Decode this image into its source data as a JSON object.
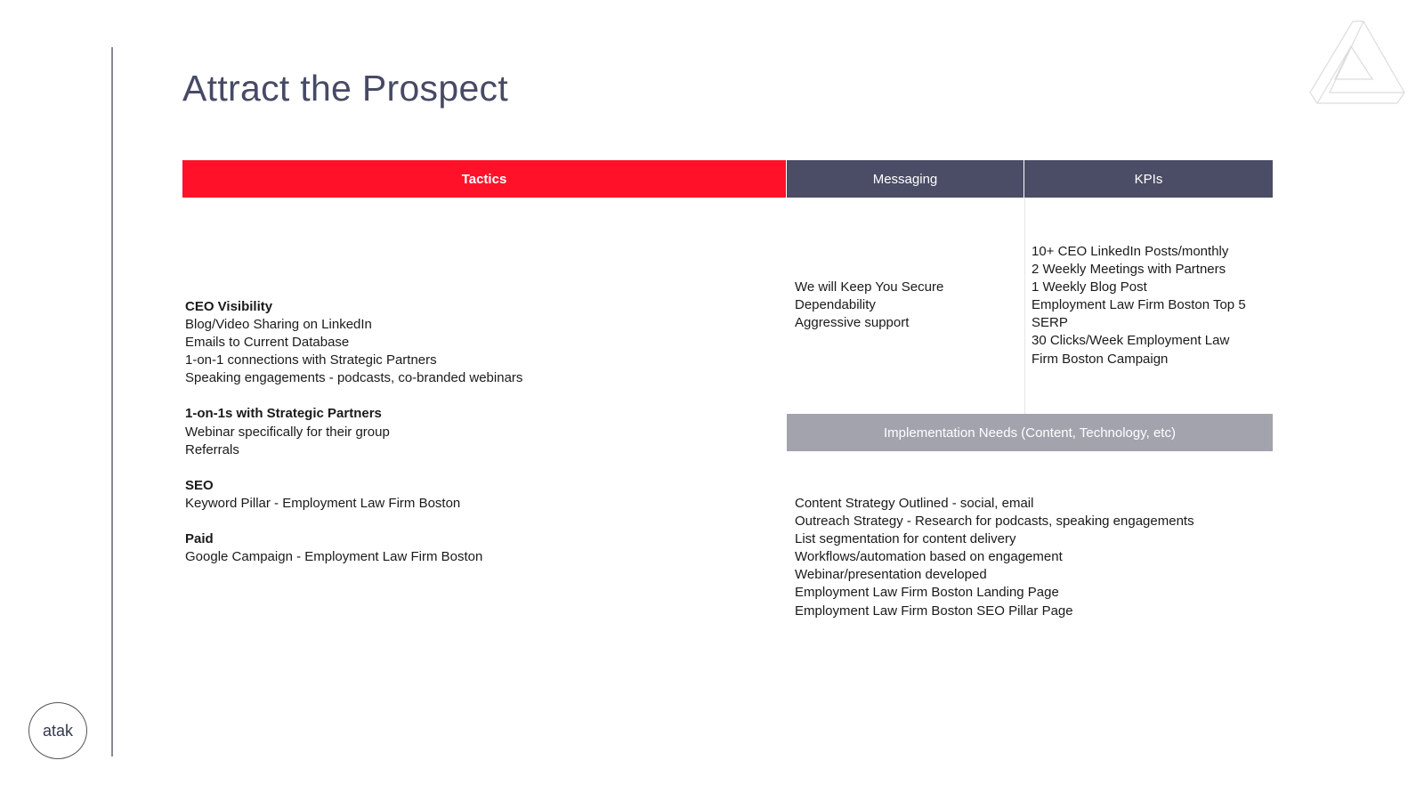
{
  "title": "Attract the Prospect",
  "headers": {
    "tactics": "Tactics",
    "messaging": "Messaging",
    "kpis": "KPIs",
    "implementation": "Implementation Needs (Content, Technology, etc)"
  },
  "tactics": [
    {
      "heading": "CEO Visibility",
      "items": [
        "Blog/Video Sharing on LinkedIn",
        "Emails to Current Database",
        "1-on-1 connections with Strategic Partners",
        "Speaking engagements - podcasts, co-branded webinars"
      ]
    },
    {
      "heading": "1-on-1s with Strategic Partners",
      "items": [
        "Webinar specifically for their group",
        "Referrals"
      ]
    },
    {
      "heading": "SEO",
      "items": [
        "Keyword Pillar - Employment Law Firm Boston"
      ]
    },
    {
      "heading": "Paid",
      "items": [
        "Google Campaign - Employment Law Firm Boston"
      ]
    }
  ],
  "messaging": [
    "We will Keep You Secure",
    "Dependability",
    "Aggressive support"
  ],
  "kpis": [
    "10+ CEO LinkedIn Posts/monthly",
    "2 Weekly Meetings with Partners",
    "1 Weekly Blog Post",
    "Employment Law Firm Boston Top 5",
    "SERP",
    "30 Clicks/Week Employment Law",
    "Firm Boston Campaign"
  ],
  "implementation": [
    "Content Strategy Outlined - social, email",
    "Outreach Strategy - Research for podcasts, speaking engagements",
    "List segmentation for content delivery",
    "Workflows/automation based on engagement",
    "Webinar/presentation developed",
    "Employment Law Firm Boston Landing Page",
    "Employment Law Firm Boston SEO Pillar Page"
  ],
  "logo": {
    "text": "atak",
    "icon": "penrose-triangle-icon"
  },
  "colors": {
    "accent": "#ff1229",
    "header": "#4b4d66",
    "impl": "#a2a3ad",
    "title": "#474a66"
  }
}
